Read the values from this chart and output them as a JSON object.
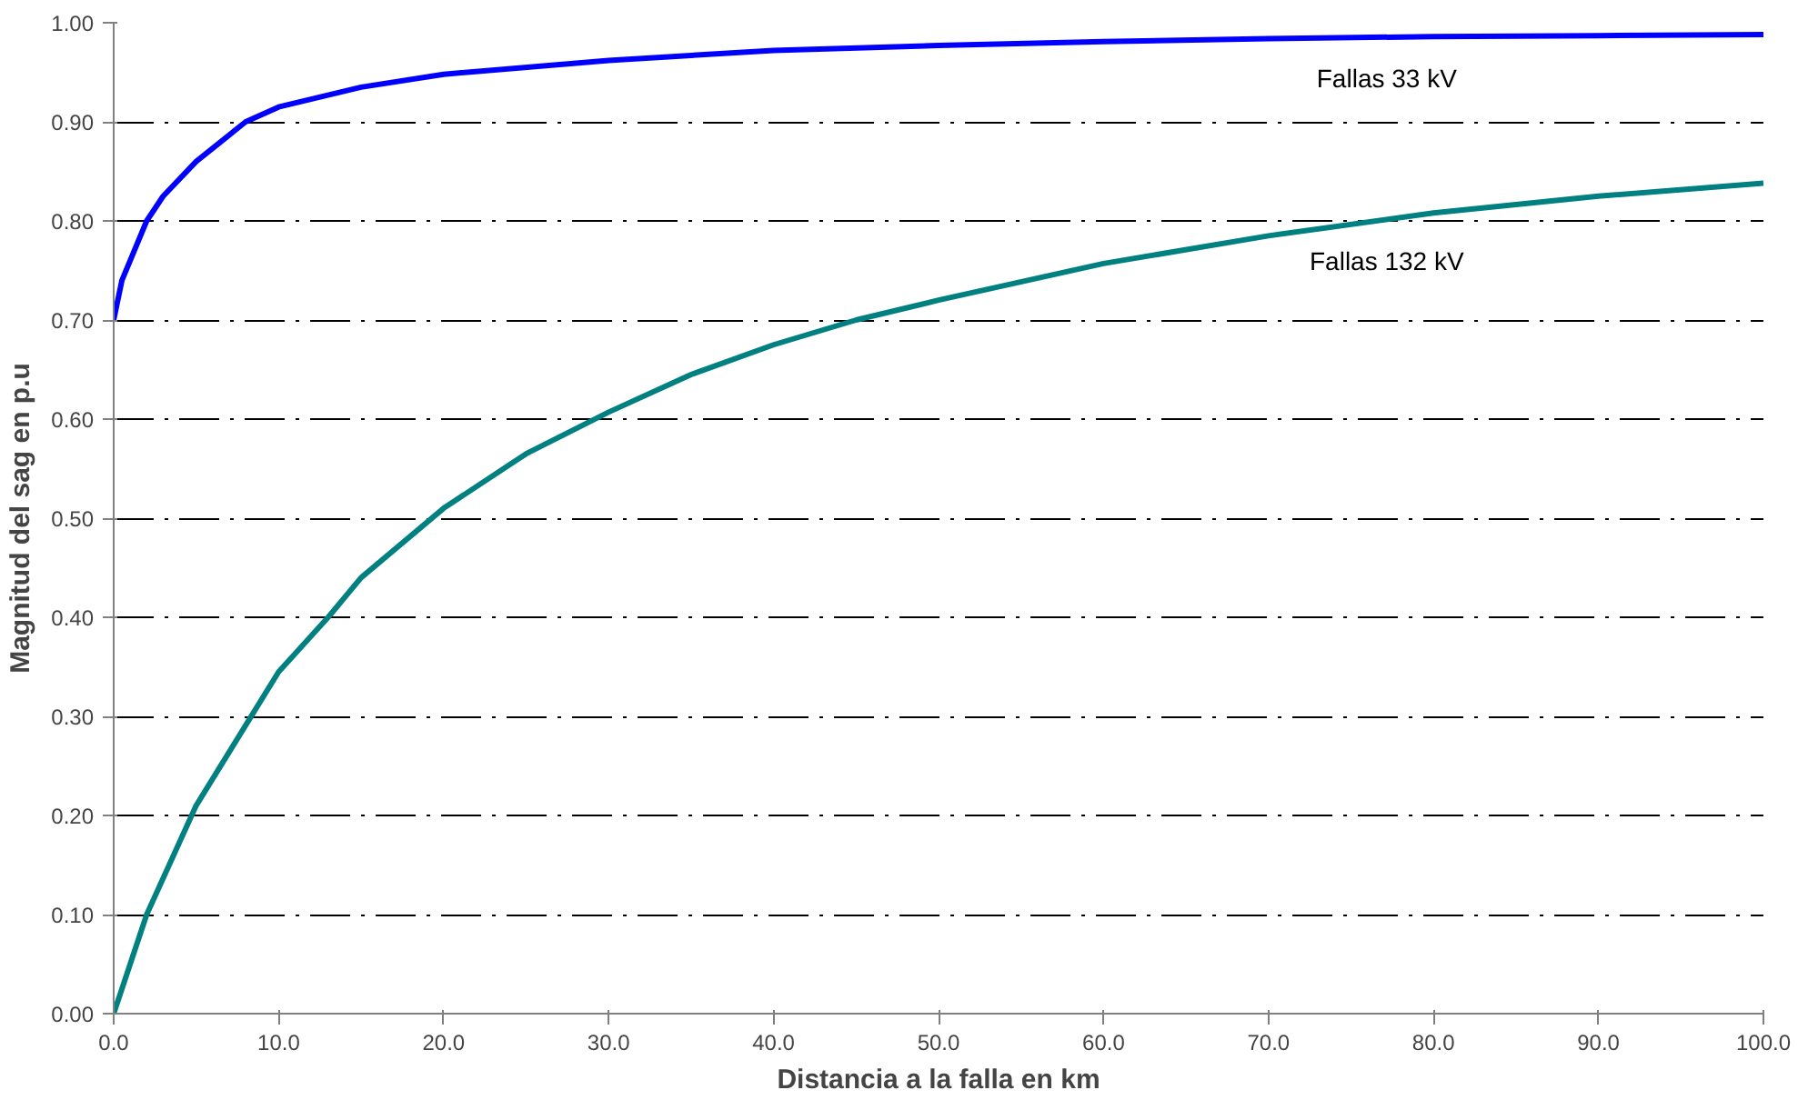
{
  "chart_data": {
    "type": "line",
    "xlabel": "Distancia a la falla en km",
    "ylabel": "Magnitud del sag en p.u",
    "xlim": [
      0,
      100
    ],
    "ylim": [
      0,
      1
    ],
    "xticks": [
      {
        "value": 0,
        "label": "0.0"
      },
      {
        "value": 10,
        "label": "10.0"
      },
      {
        "value": 20,
        "label": "20.0"
      },
      {
        "value": 30,
        "label": "30.0"
      },
      {
        "value": 40,
        "label": "40.0"
      },
      {
        "value": 50,
        "label": "50.0"
      },
      {
        "value": 60,
        "label": "60.0"
      },
      {
        "value": 70,
        "label": "70.0"
      },
      {
        "value": 80,
        "label": "80.0"
      },
      {
        "value": 90,
        "label": "90.0"
      },
      {
        "value": 100,
        "label": "100.0"
      }
    ],
    "yticks": [
      {
        "value": 0,
        "label": "0.00"
      },
      {
        "value": 0.1,
        "label": "0.10"
      },
      {
        "value": 0.2,
        "label": "0.20"
      },
      {
        "value": 0.3,
        "label": "0.30"
      },
      {
        "value": 0.4,
        "label": "0.40"
      },
      {
        "value": 0.5,
        "label": "0.50"
      },
      {
        "value": 0.6,
        "label": "0.60"
      },
      {
        "value": 0.7,
        "label": "0.70"
      },
      {
        "value": 0.8,
        "label": "0.80"
      },
      {
        "value": 0.9,
        "label": "0.90"
      },
      {
        "value": 1,
        "label": "1.00"
      }
    ],
    "grid": "y",
    "marker": "none",
    "line_style": "solid",
    "series": [
      {
        "name": "Fallas 33 kV",
        "color": "#0000ff",
        "x": [
          0,
          0.5,
          1,
          2,
          3,
          5,
          8,
          10,
          15,
          20,
          30,
          40,
          50,
          60,
          70,
          80,
          90,
          100
        ],
        "values": [
          0.7,
          0.74,
          0.76,
          0.8,
          0.825,
          0.86,
          0.9,
          0.915,
          0.935,
          0.948,
          0.962,
          0.972,
          0.977,
          0.981,
          0.984,
          0.986,
          0.987,
          0.988
        ]
      },
      {
        "name": "Fallas 132 kV",
        "color": "#008080",
        "x": [
          0,
          1,
          2,
          5,
          10,
          13,
          15,
          20,
          25,
          30,
          35,
          40,
          45,
          50,
          60,
          70,
          80,
          90,
          100
        ],
        "values": [
          0,
          0.05,
          0.1,
          0.21,
          0.345,
          0.4,
          0.44,
          0.51,
          0.565,
          0.607,
          0.645,
          0.675,
          0.7,
          0.72,
          0.757,
          0.785,
          0.808,
          0.825,
          0.838
        ]
      }
    ]
  }
}
